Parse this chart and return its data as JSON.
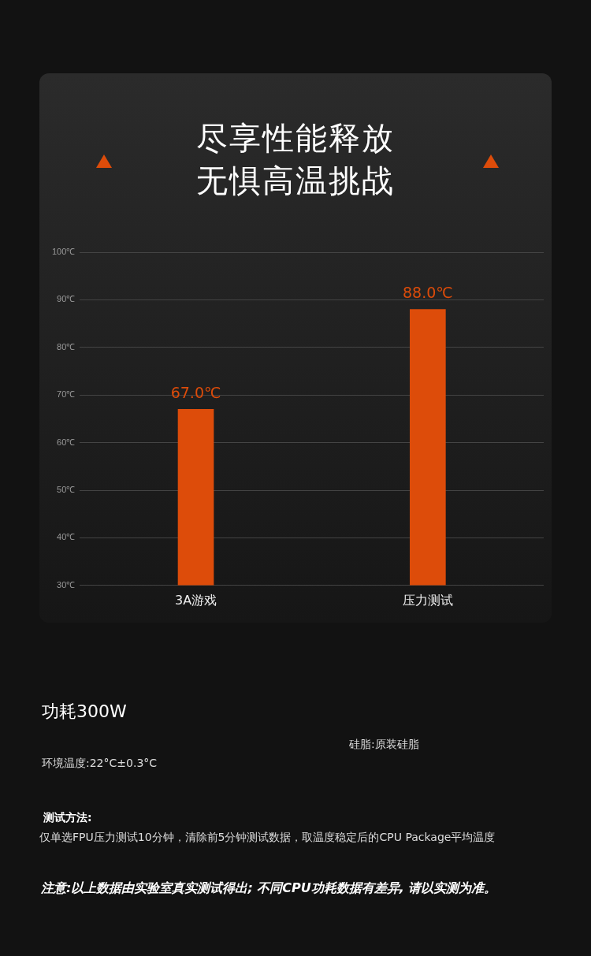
{
  "chart_data": {
    "type": "bar",
    "title": "尽享性能释放无惧高温挑战",
    "categories": [
      "3A游戏",
      "压力测试"
    ],
    "values": [
      67.0,
      88.0
    ],
    "value_labels": [
      "67.0℃",
      "88.0℃"
    ],
    "color": "#dd4c0a",
    "ylim": [
      30,
      100
    ],
    "yticks": [
      {
        "value": 30,
        "label": "30℃"
      },
      {
        "value": 40,
        "label": "40℃"
      },
      {
        "value": 50,
        "label": "50℃"
      },
      {
        "value": 60,
        "label": "60℃"
      },
      {
        "value": 70,
        "label": "70℃"
      },
      {
        "value": 80,
        "label": "80℃"
      },
      {
        "value": 90,
        "label": "90℃"
      },
      {
        "value": 100,
        "label": "100℃"
      }
    ],
    "grid": "y",
    "annotations": [
      "功耗300W",
      "硅脂:原装硅脂",
      "环境温度:22°C±0.3°C",
      "测试方法:",
      "仅单选FPU压力测试10分钟，清除前5分钟测试数据，取温度稳定后的CPU Package平均温度",
      "注意:以上数据由实验室真实测试得出; 不同CPU功耗数据有差异, 请以实测为准。"
    ]
  }
}
